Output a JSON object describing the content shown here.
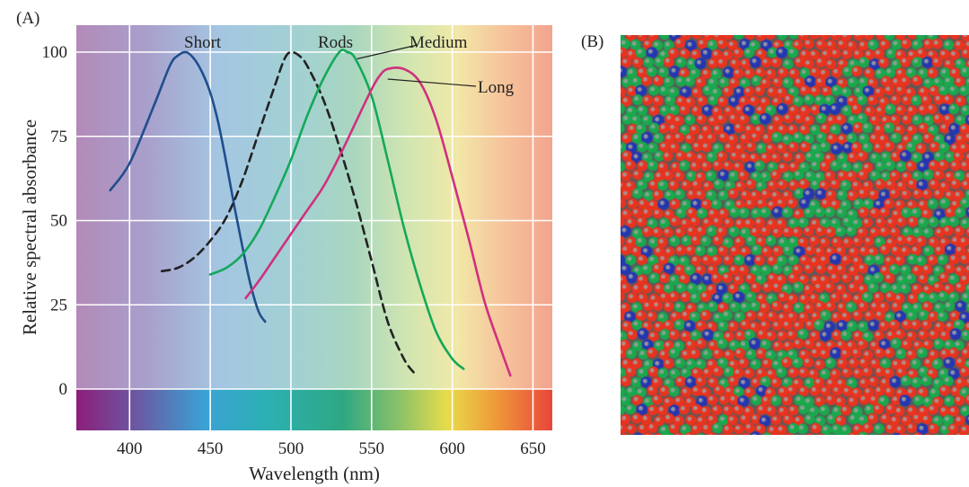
{
  "panel_a_label": "(A)",
  "panel_b_label": "(B)",
  "chart_data": {
    "type": "line",
    "xlabel": "Wavelength (nm)",
    "ylabel": "Relative spectral absorbance",
    "xlim": [
      367,
      662
    ],
    "ylim": [
      0,
      108
    ],
    "x_ticks": [
      "400",
      "450",
      "500",
      "550",
      "600",
      "650"
    ],
    "y_ticks": [
      "0",
      "25",
      "50",
      "75",
      "100"
    ],
    "grid": true,
    "background": "visible-spectrum gradient",
    "series": [
      {
        "name": "Short",
        "color": "#1f4e8c",
        "dashed": false,
        "x": [
          388,
          400,
          415,
          425,
          430,
          435,
          440,
          445,
          450,
          455,
          460,
          465,
          470,
          475,
          480,
          484
        ],
        "y": [
          59,
          67,
          84,
          96,
          99,
          100,
          98,
          94,
          88,
          79,
          67,
          54,
          42,
          31,
          23,
          20
        ]
      },
      {
        "name": "Rods",
        "color": "#222222",
        "dashed": true,
        "x": [
          420,
          430,
          440,
          450,
          460,
          470,
          480,
          490,
          496,
          500,
          505,
          510,
          520,
          530,
          540,
          550,
          560,
          570,
          576
        ],
        "y": [
          35,
          36,
          39,
          44,
          51,
          62,
          76,
          90,
          98,
          100,
          99,
          96,
          86,
          72,
          56,
          38,
          20,
          9,
          5
        ]
      },
      {
        "name": "Medium",
        "color": "#16a85a",
        "dashed": false,
        "x": [
          450,
          460,
          470,
          480,
          490,
          500,
          510,
          520,
          530,
          535,
          540,
          550,
          560,
          570,
          580,
          590,
          600,
          607
        ],
        "y": [
          34,
          36,
          40,
          47,
          57,
          68,
          81,
          92,
          100,
          100,
          98,
          87,
          68,
          48,
          31,
          17,
          9,
          6
        ]
      },
      {
        "name": "Long",
        "color": "#d0307e",
        "dashed": false,
        "x": [
          472,
          480,
          490,
          500,
          510,
          520,
          530,
          540,
          550,
          555,
          560,
          570,
          580,
          590,
          600,
          610,
          620,
          630,
          636
        ],
        "y": [
          27,
          32,
          39,
          46,
          53,
          60,
          69,
          79,
          89,
          93,
          95,
          95,
          91,
          80,
          63,
          45,
          26,
          12,
          4
        ]
      }
    ]
  },
  "mosaic": {
    "colors": {
      "long_cone": "#e8331f",
      "medium_cone": "#1aa84d",
      "short_cone": "#2436b0",
      "background": "#5a5a5a"
    },
    "proportions": {
      "long": 0.6,
      "medium": 0.33,
      "short": 0.07
    }
  }
}
